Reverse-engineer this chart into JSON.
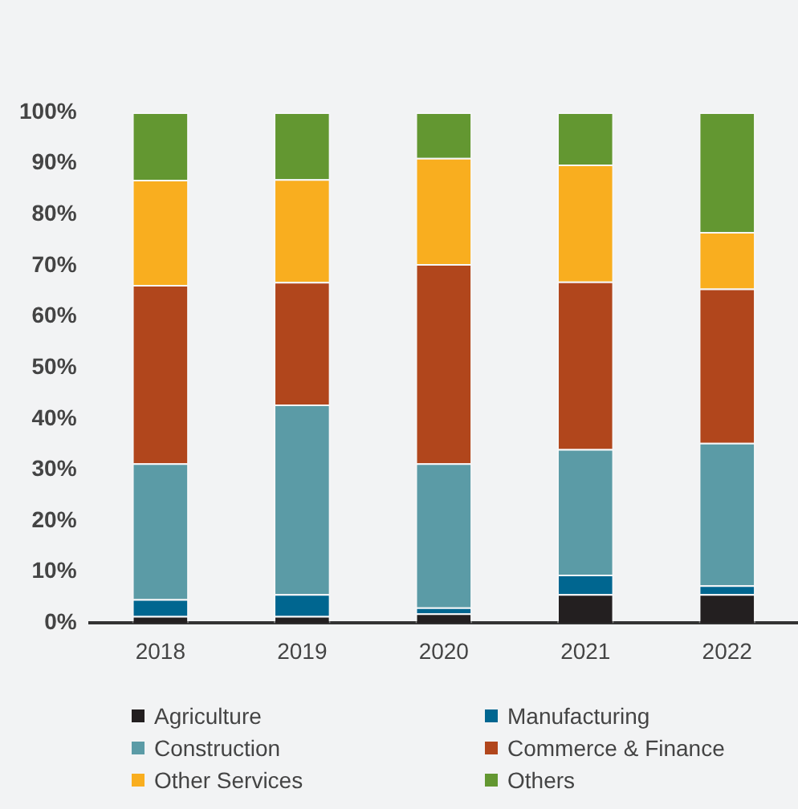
{
  "chart_data": {
    "type": "bar",
    "stacked": true,
    "categories": [
      "2018",
      "2019",
      "2020",
      "2021",
      "2022"
    ],
    "series": [
      {
        "name": "Agriculture",
        "color": "#231f20",
        "values": [
          1.4,
          1.4,
          1.9,
          5.7,
          5.7
        ]
      },
      {
        "name": "Manufacturing",
        "color": "#006690",
        "values": [
          3.3,
          4.3,
          1.2,
          3.8,
          1.7
        ]
      },
      {
        "name": "Construction",
        "color": "#5b9ba6",
        "values": [
          26.6,
          37.1,
          28.2,
          24.6,
          27.9
        ]
      },
      {
        "name": "Commerce & Finance",
        "color": "#b1461c",
        "values": [
          34.9,
          24.0,
          39.0,
          32.8,
          30.2
        ]
      },
      {
        "name": "Other Services",
        "color": "#f9ae1f",
        "values": [
          20.6,
          20.1,
          20.8,
          22.9,
          11.1
        ]
      },
      {
        "name": "Others",
        "color": "#639731",
        "values": [
          13.2,
          13.1,
          8.9,
          10.2,
          23.4
        ]
      }
    ],
    "ylim": [
      0,
      100
    ],
    "yticks": [
      {
        "value": 0,
        "label": "0%"
      },
      {
        "value": 10,
        "label": "10%"
      },
      {
        "value": 20,
        "label": "20%"
      },
      {
        "value": 30,
        "label": "30%"
      },
      {
        "value": 40,
        "label": "40%"
      },
      {
        "value": 50,
        "label": "50%"
      },
      {
        "value": 60,
        "label": "60%"
      },
      {
        "value": 70,
        "label": "70%"
      },
      {
        "value": 80,
        "label": "80%"
      },
      {
        "value": 90,
        "label": "90%"
      },
      {
        "value": 100,
        "label": "100%"
      }
    ],
    "grid": false,
    "legend": "bottom"
  }
}
